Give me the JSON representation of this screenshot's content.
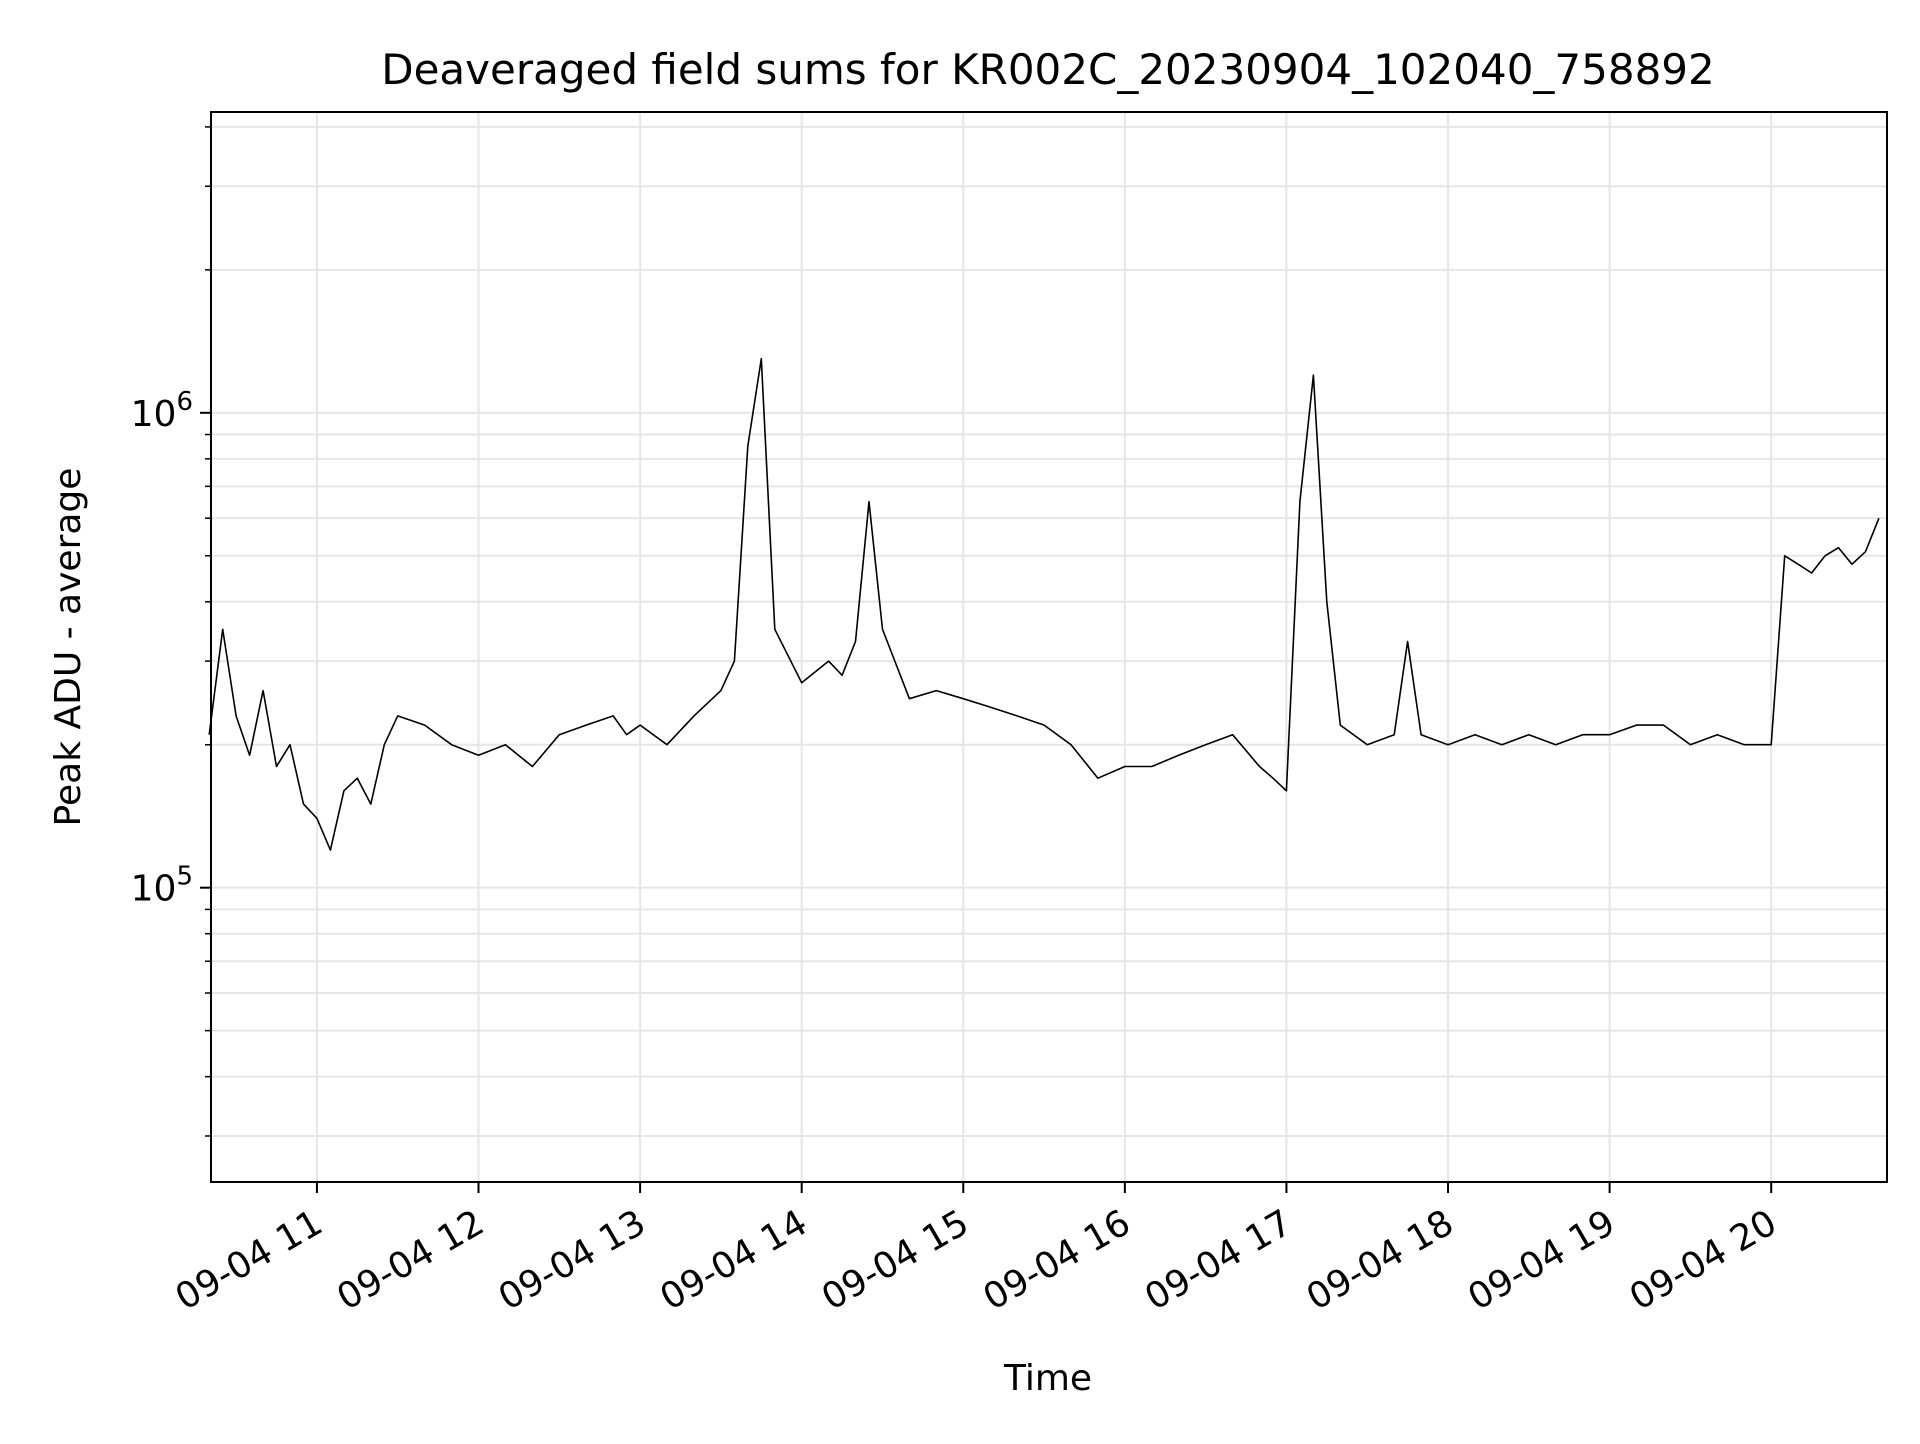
{
  "chart_data": {
    "type": "line",
    "title": "Deaveraged field sums for KR002C_20230904_102040_758892",
    "xlabel": "Time",
    "ylabel": "Peak ADU - average",
    "yscale": "log",
    "ylim": [
      24000,
      4300000
    ],
    "xlim": [
      "2023-09-04 10:20:40",
      "2023-09-04 20:43:00"
    ],
    "grid": true,
    "legend": "none",
    "line_color": "#000000",
    "y_ticks": [
      {
        "value": 100000,
        "base": "10",
        "exp": "5"
      },
      {
        "value": 1000000,
        "base": "10",
        "exp": "6"
      }
    ],
    "x_ticks": [
      {
        "value": "2023-09-04 11:00",
        "label": "09-04 11"
      },
      {
        "value": "2023-09-04 12:00",
        "label": "09-04 12"
      },
      {
        "value": "2023-09-04 13:00",
        "label": "09-04 13"
      },
      {
        "value": "2023-09-04 14:00",
        "label": "09-04 14"
      },
      {
        "value": "2023-09-04 15:00",
        "label": "09-04 15"
      },
      {
        "value": "2023-09-04 16:00",
        "label": "09-04 16"
      },
      {
        "value": "2023-09-04 17:00",
        "label": "09-04 17"
      },
      {
        "value": "2023-09-04 18:00",
        "label": "09-04 18"
      },
      {
        "value": "2023-09-04 19:00",
        "label": "09-04 19"
      },
      {
        "value": "2023-09-04 20:00",
        "label": "09-04 20"
      }
    ],
    "series": [
      {
        "x": [
          "2023-09-04 10:20",
          "2023-09-04 10:25",
          "2023-09-04 10:30",
          "2023-09-04 10:35",
          "2023-09-04 10:40",
          "2023-09-04 10:45",
          "2023-09-04 10:50",
          "2023-09-04 10:55",
          "2023-09-04 11:00",
          "2023-09-04 11:05",
          "2023-09-04 11:10",
          "2023-09-04 11:15",
          "2023-09-04 11:20",
          "2023-09-04 11:25",
          "2023-09-04 11:30",
          "2023-09-04 11:40",
          "2023-09-04 11:50",
          "2023-09-04 12:00",
          "2023-09-04 12:10",
          "2023-09-04 12:20",
          "2023-09-04 12:30",
          "2023-09-04 12:40",
          "2023-09-04 12:50",
          "2023-09-04 12:55",
          "2023-09-04 13:00",
          "2023-09-04 13:10",
          "2023-09-04 13:20",
          "2023-09-04 13:30",
          "2023-09-04 13:35",
          "2023-09-04 13:40",
          "2023-09-04 13:45",
          "2023-09-04 13:50",
          "2023-09-04 14:00",
          "2023-09-04 14:10",
          "2023-09-04 14:15",
          "2023-09-04 14:20",
          "2023-09-04 14:25",
          "2023-09-04 14:30",
          "2023-09-04 14:40",
          "2023-09-04 14:50",
          "2023-09-04 15:00",
          "2023-09-04 15:10",
          "2023-09-04 15:20",
          "2023-09-04 15:30",
          "2023-09-04 15:40",
          "2023-09-04 15:50",
          "2023-09-04 16:00",
          "2023-09-04 16:10",
          "2023-09-04 16:20",
          "2023-09-04 16:30",
          "2023-09-04 16:40",
          "2023-09-04 16:50",
          "2023-09-04 16:55",
          "2023-09-04 17:00",
          "2023-09-04 17:05",
          "2023-09-04 17:10",
          "2023-09-04 17:15",
          "2023-09-04 17:20",
          "2023-09-04 17:30",
          "2023-09-04 17:40",
          "2023-09-04 17:45",
          "2023-09-04 17:50",
          "2023-09-04 18:00",
          "2023-09-04 18:10",
          "2023-09-04 18:20",
          "2023-09-04 18:30",
          "2023-09-04 18:40",
          "2023-09-04 18:50",
          "2023-09-04 19:00",
          "2023-09-04 19:10",
          "2023-09-04 19:20",
          "2023-09-04 19:30",
          "2023-09-04 19:40",
          "2023-09-04 19:50",
          "2023-09-04 20:00",
          "2023-09-04 20:05",
          "2023-09-04 20:10",
          "2023-09-04 20:15",
          "2023-09-04 20:20",
          "2023-09-04 20:25",
          "2023-09-04 20:30",
          "2023-09-04 20:35",
          "2023-09-04 20:40"
        ],
        "y": [
          210000,
          350000,
          230000,
          190000,
          260000,
          180000,
          200000,
          150000,
          140000,
          120000,
          160000,
          170000,
          150000,
          200000,
          230000,
          220000,
          200000,
          190000,
          200000,
          180000,
          210000,
          220000,
          230000,
          210000,
          220000,
          200000,
          230000,
          260000,
          300000,
          850000,
          1300000,
          350000,
          270000,
          300000,
          280000,
          330000,
          650000,
          350000,
          250000,
          260000,
          250000,
          240000,
          230000,
          220000,
          200000,
          170000,
          180000,
          180000,
          190000,
          200000,
          210000,
          180000,
          170000,
          160000,
          650000,
          1200000,
          400000,
          220000,
          200000,
          210000,
          330000,
          210000,
          200000,
          210000,
          200000,
          210000,
          200000,
          210000,
          210000,
          220000,
          220000,
          200000,
          210000,
          200000,
          200000,
          500000,
          480000,
          460000,
          500000,
          520000,
          480000,
          510000,
          600000
        ]
      }
    ]
  }
}
